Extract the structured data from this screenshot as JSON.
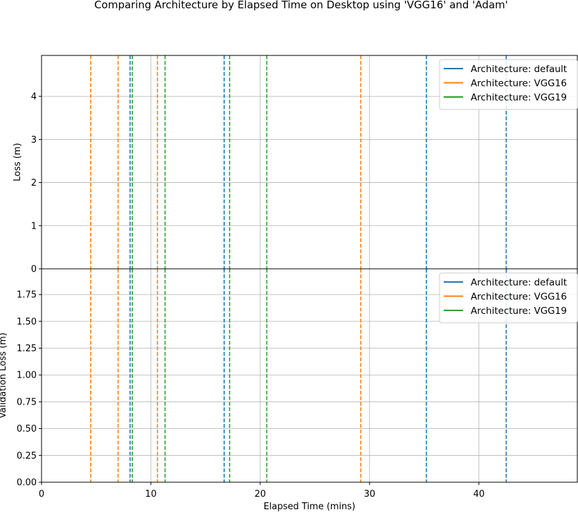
{
  "chart_data": {
    "type": "line",
    "title": "Comparing Architecture by Elapsed Time on Desktop using 'VGG16' and 'Adam'",
    "xlabel": "Elapsed Time (mins)",
    "xlim": [
      0,
      49
    ],
    "xticks": [
      0,
      10,
      20,
      30,
      40
    ],
    "xtick_labels": [
      "0",
      "10",
      "20",
      "30",
      "40"
    ],
    "grid": true,
    "subplots": [
      {
        "ylabel": "Loss (m)",
        "ylim": [
          0,
          4.95
        ],
        "yticks": [
          0,
          1,
          2,
          3,
          4
        ],
        "ytick_labels": [
          "0",
          "1",
          "2",
          "3",
          "4"
        ],
        "legend_position": "upper right"
      },
      {
        "ylabel": "Validation Loss (m)",
        "ylim": [
          0,
          1.99
        ],
        "yticks": [
          0,
          0.25,
          0.5,
          0.75,
          1.0,
          1.25,
          1.5,
          1.75
        ],
        "ytick_labels": [
          "0.00",
          "0.25",
          "0.50",
          "0.75",
          "1.00",
          "1.25",
          "1.50",
          "1.75"
        ],
        "legend_position": "upper right"
      }
    ],
    "series": [
      {
        "name": "Architecture: default",
        "color": "#1f77b4",
        "vlines": [
          8.1,
          16.7,
          35.2,
          42.5
        ]
      },
      {
        "name": "Architecture: VGG16",
        "color": "#ff7f0e",
        "vlines": [
          4.5,
          7.0,
          10.6,
          29.2
        ]
      },
      {
        "name": "Architecture: VGG19",
        "color": "#2ca02c",
        "vlines": [
          8.3,
          11.3,
          17.2,
          20.6
        ]
      }
    ]
  }
}
